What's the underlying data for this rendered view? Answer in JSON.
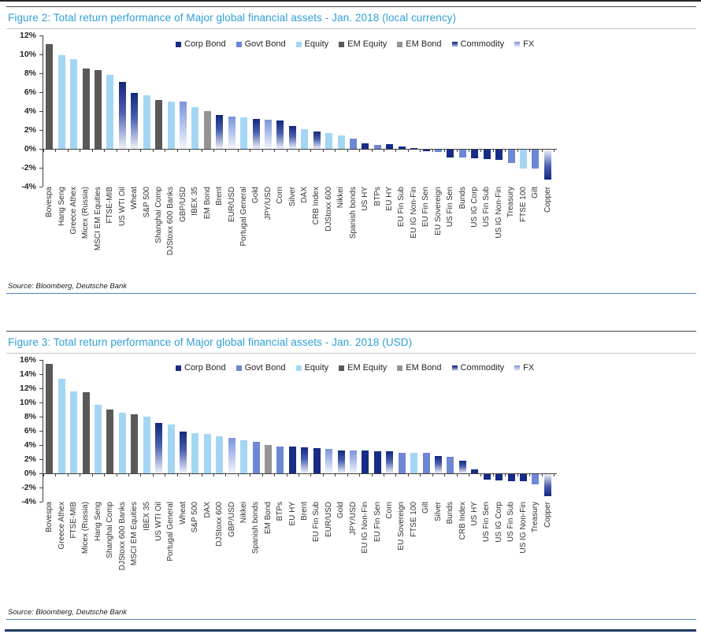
{
  "figures": [
    {
      "title": "Figure 2: Total return performance of Major global financial assets - Jan. 2018 (local currency)",
      "source": "Source: Bloomberg, Deutsche Bank"
    },
    {
      "title": "Figure 3: Total return performance of Major global financial assets - Jan. 2018 (USD)",
      "source": "Source: Bloomberg, Deutsche Bank"
    }
  ],
  "chart_data": [
    {
      "type": "bar",
      "title": "Figure 2: Total return performance of Major global financial assets - Jan. 2018 (local currency)",
      "xlabel": "",
      "ylabel": "",
      "ylim": [
        -4,
        12
      ],
      "ytick_step": 2,
      "grid": false,
      "yticks": [
        "12%",
        "10%",
        "8%",
        "6%",
        "4%",
        "2%",
        "0%",
        "-2%",
        "-4%"
      ],
      "legend_position": "top-inside",
      "legend": [
        "Corp Bond",
        "Govt Bond",
        "Equity",
        "EM Equity",
        "EM Bond",
        "Commodity",
        "FX"
      ],
      "categories": [
        "Bovespa",
        "Hang Seng",
        "Greece Athex",
        "Micex (Russia)",
        "MSCI EM Equities",
        "FTSE-MIB",
        "US WTI Oil",
        "Wheat",
        "S&P 500",
        "Shanghai Comp",
        "DJStoxx 600 Banks",
        "GBP/USD",
        "IBEX 35",
        "EM Bond",
        "Brent",
        "EUR/USD",
        "Portugal General",
        "Gold",
        "JPY/USD",
        "Corn",
        "Silver",
        "DAX",
        "CRB Index",
        "DJStoxx 600",
        "Nikkei",
        "Spanish bonds",
        "US HY",
        "BTPs",
        "EU HY",
        "EU Fin Sub",
        "EU IG Non-Fin",
        "EU Fin Sen",
        "EU Sovereign",
        "US Fin Sen",
        "Bunds",
        "US IG Corp",
        "US Fin Sub",
        "US IG Non-Fin",
        "Treasury",
        "FTSE 100",
        "Gilt",
        "Copper"
      ],
      "values": [
        11.1,
        9.9,
        9.5,
        8.5,
        8.3,
        7.8,
        7.1,
        5.9,
        5.7,
        5.2,
        5.0,
        5.0,
        4.4,
        4.0,
        3.6,
        3.4,
        3.3,
        3.2,
        3.1,
        3.0,
        2.4,
        2.1,
        1.8,
        1.7,
        1.4,
        1.1,
        0.6,
        0.4,
        0.5,
        0.25,
        0.1,
        -0.15,
        -0.25,
        -0.8,
        -0.85,
        -0.95,
        -1.0,
        -1.05,
        -1.4,
        -2.0,
        -2.0,
        -3.2
      ],
      "classes": [
        "EM Equity",
        "Equity",
        "Equity",
        "EM Equity",
        "EM Equity",
        "Equity",
        "Commodity",
        "Commodity",
        "Equity",
        "EM Equity",
        "Equity",
        "FX",
        "Equity",
        "EM Bond",
        "Commodity",
        "FX",
        "Equity",
        "Commodity",
        "FX",
        "Commodity",
        "Commodity",
        "Equity",
        "Commodity",
        "Equity",
        "Equity",
        "Govt Bond",
        "Corp Bond",
        "Govt Bond",
        "Corp Bond",
        "Corp Bond",
        "Corp Bond",
        "Corp Bond",
        "Govt Bond",
        "Corp Bond",
        "Govt Bond",
        "Corp Bond",
        "Corp Bond",
        "Corp Bond",
        "Govt Bond",
        "Equity",
        "Govt Bond",
        "Commodity"
      ]
    },
    {
      "type": "bar",
      "title": "Figure 3: Total return performance of Major global financial assets - Jan. 2018 (USD)",
      "xlabel": "",
      "ylabel": "",
      "ylim": [
        -4,
        16
      ],
      "ytick_step": 2,
      "grid": false,
      "yticks": [
        "16%",
        "14%",
        "12%",
        "10%",
        "8%",
        "6%",
        "4%",
        "2%",
        "0%",
        "-2%",
        "-4%"
      ],
      "legend_position": "top-inside",
      "legend": [
        "Corp Bond",
        "Govt Bond",
        "Equity",
        "EM Equity",
        "EM Bond",
        "Commodity",
        "FX"
      ],
      "categories": [
        "Bovespa",
        "Greece Athex",
        "FTSE-MIB",
        "Micex (Russia)",
        "Hang Seng",
        "Shanghai Comp",
        "DJStoxx 600 Banks",
        "MSCI EM Equities",
        "IBEX 35",
        "US WTI Oil",
        "Portugal General",
        "Wheat",
        "S&P 500",
        "DAX",
        "DJStoxx 600",
        "GBP/USD",
        "Nikkei",
        "Spanish bonds",
        "EM Bond",
        "BTPs",
        "EU HY",
        "Brent",
        "EU Fin Sub",
        "EUR/USD",
        "Gold",
        "JPY/USD",
        "EU IG Non-Fin",
        "EU Fin Sen",
        "Corn",
        "EU Sovereign",
        "FTSE 100",
        "Gilt",
        "Silver",
        "Bunds",
        "CRB Index",
        "US HY",
        "US Fin Sen",
        "US IG Corp",
        "US Fin Sub",
        "US IG Non-Fin",
        "Treasury",
        "Copper"
      ],
      "values": [
        15.5,
        13.3,
        11.6,
        11.4,
        9.7,
        9.0,
        8.6,
        8.3,
        8.0,
        7.1,
        6.9,
        5.9,
        5.7,
        5.6,
        5.2,
        5.0,
        4.7,
        4.5,
        4.0,
        3.8,
        3.8,
        3.7,
        3.6,
        3.45,
        3.25,
        3.2,
        3.2,
        3.15,
        3.1,
        2.9,
        2.9,
        2.85,
        2.4,
        2.3,
        1.8,
        0.6,
        -0.8,
        -0.9,
        -0.95,
        -1.0,
        -1.4,
        -3.1
      ],
      "classes": [
        "EM Equity",
        "Equity",
        "Equity",
        "EM Equity",
        "Equity",
        "EM Equity",
        "Equity",
        "EM Equity",
        "Equity",
        "Commodity",
        "Equity",
        "Commodity",
        "Equity",
        "Equity",
        "Equity",
        "FX",
        "Equity",
        "Govt Bond",
        "EM Bond",
        "Govt Bond",
        "Corp Bond",
        "Commodity",
        "Corp Bond",
        "FX",
        "Commodity",
        "FX",
        "Corp Bond",
        "Corp Bond",
        "Commodity",
        "Govt Bond",
        "Equity",
        "Govt Bond",
        "Commodity",
        "Govt Bond",
        "Commodity",
        "Corp Bond",
        "Corp Bond",
        "Corp Bond",
        "Corp Bond",
        "Corp Bond",
        "Govt Bond",
        "Commodity"
      ]
    }
  ],
  "colors": {
    "title_blue": "#2d9fd8",
    "axis": "#404040",
    "source_rule_blue": "#4f81bd",
    "page_rule_dark": "#1f3a63",
    "classes": {
      "Corp Bond": "#162c86",
      "Govt Bond": "#6e87d5",
      "Equity": "#a4d6f4",
      "EM Equity": "#595959",
      "EM Bond": "#949494",
      "Commodity": {
        "from": "#13277d",
        "mid": "#4a5fae",
        "to": "#f0f3fb"
      },
      "FX": {
        "from": "#7b94da",
        "mid": "#aebfec",
        "to": "#f4f6fc"
      }
    }
  }
}
